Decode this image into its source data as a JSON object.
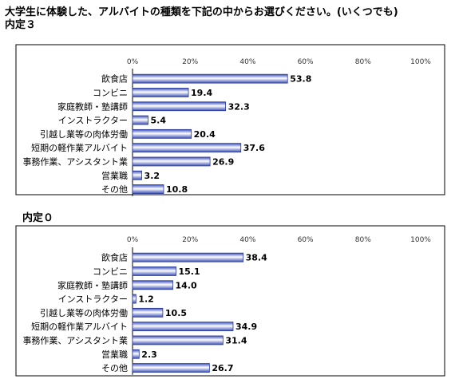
{
  "title_line1": "大学生に体験した、アルバイトの種類を下記の中からお選びください。(いくつでも)",
  "title_line2": "内定３",
  "chart_data": [
    {
      "type": "bar",
      "title": "内定３",
      "categories": [
        "飲食店",
        "コンビニ",
        "家庭教師・塾講師",
        "インストラクター",
        "引越し業等の肉体労働",
        "短期の軽作業アルバイト",
        "事務作業、アシスタント業",
        "営業職",
        "その他"
      ],
      "values": [
        53.8,
        19.4,
        32.3,
        5.4,
        20.4,
        37.6,
        26.9,
        3.2,
        10.8
      ],
      "ticks": [
        "0%",
        "20%",
        "40%",
        "60%",
        "80%",
        "100%"
      ],
      "xlim": [
        0,
        100
      ]
    },
    {
      "type": "bar",
      "title": "内定０",
      "categories": [
        "飲食店",
        "コンビニ",
        "家庭教師・塾講師",
        "インストラクター",
        "引越し業等の肉体労働",
        "短期の軽作業アルバイト",
        "事務作業、アシスタント業",
        "営業職",
        "その他"
      ],
      "values": [
        38.4,
        15.1,
        14.0,
        1.2,
        10.5,
        34.9,
        31.4,
        2.3,
        26.7
      ],
      "ticks": [
        "0%",
        "20%",
        "40%",
        "60%",
        "80%",
        "100%"
      ],
      "xlim": [
        0,
        100
      ]
    }
  ]
}
